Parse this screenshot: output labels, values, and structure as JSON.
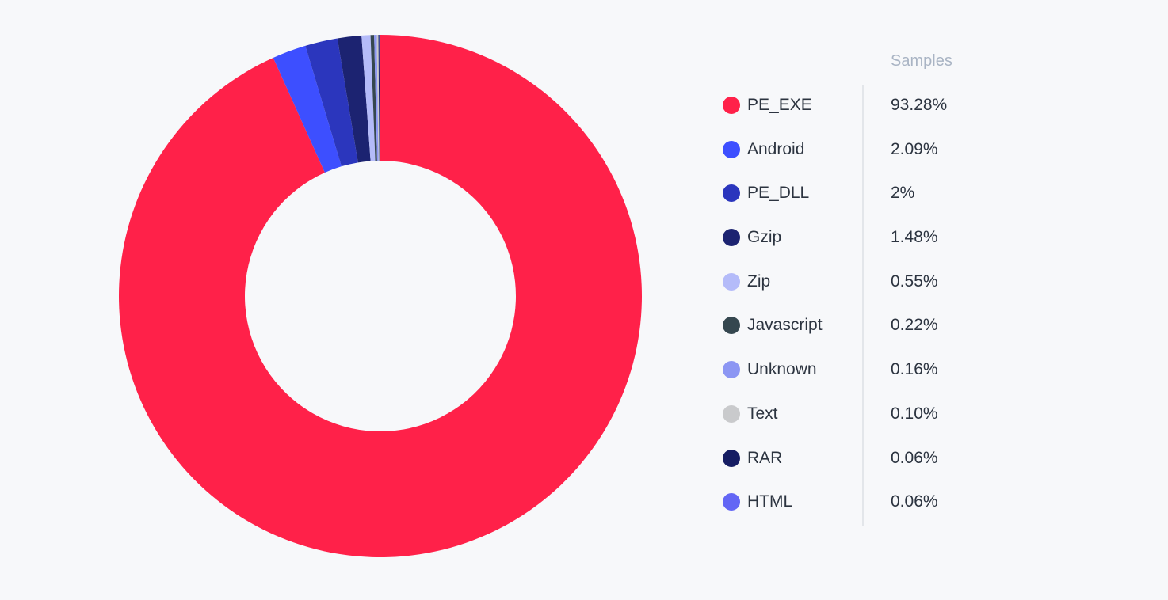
{
  "chart_data": {
    "type": "pie",
    "donut": true,
    "title": "",
    "legend_header": "Samples",
    "legend_position": "right",
    "slices": [
      {
        "label": "PE_EXE",
        "value": 93.28,
        "display": "93.28%",
        "color": "#ff2149"
      },
      {
        "label": "Android",
        "value": 2.09,
        "display": "2.09%",
        "color": "#3d4fff"
      },
      {
        "label": "PE_DLL",
        "value": 2,
        "display": "2%",
        "color": "#2b36bd"
      },
      {
        "label": "Gzip",
        "value": 1.48,
        "display": "1.48%",
        "color": "#1c2371"
      },
      {
        "label": "Zip",
        "value": 0.55,
        "display": "0.55%",
        "color": "#b4bbf9"
      },
      {
        "label": "Javascript",
        "value": 0.22,
        "display": "0.22%",
        "color": "#35474f"
      },
      {
        "label": "Unknown",
        "value": 0.16,
        "display": "0.16%",
        "color": "#8c96f3"
      },
      {
        "label": "Text",
        "value": 0.1,
        "display": "0.10%",
        "color": "#c9cacc"
      },
      {
        "label": "RAR",
        "value": 0.06,
        "display": "0.06%",
        "color": "#161d63"
      },
      {
        "label": "HTML",
        "value": 0.06,
        "display": "0.06%",
        "color": "#6366f5"
      }
    ]
  }
}
